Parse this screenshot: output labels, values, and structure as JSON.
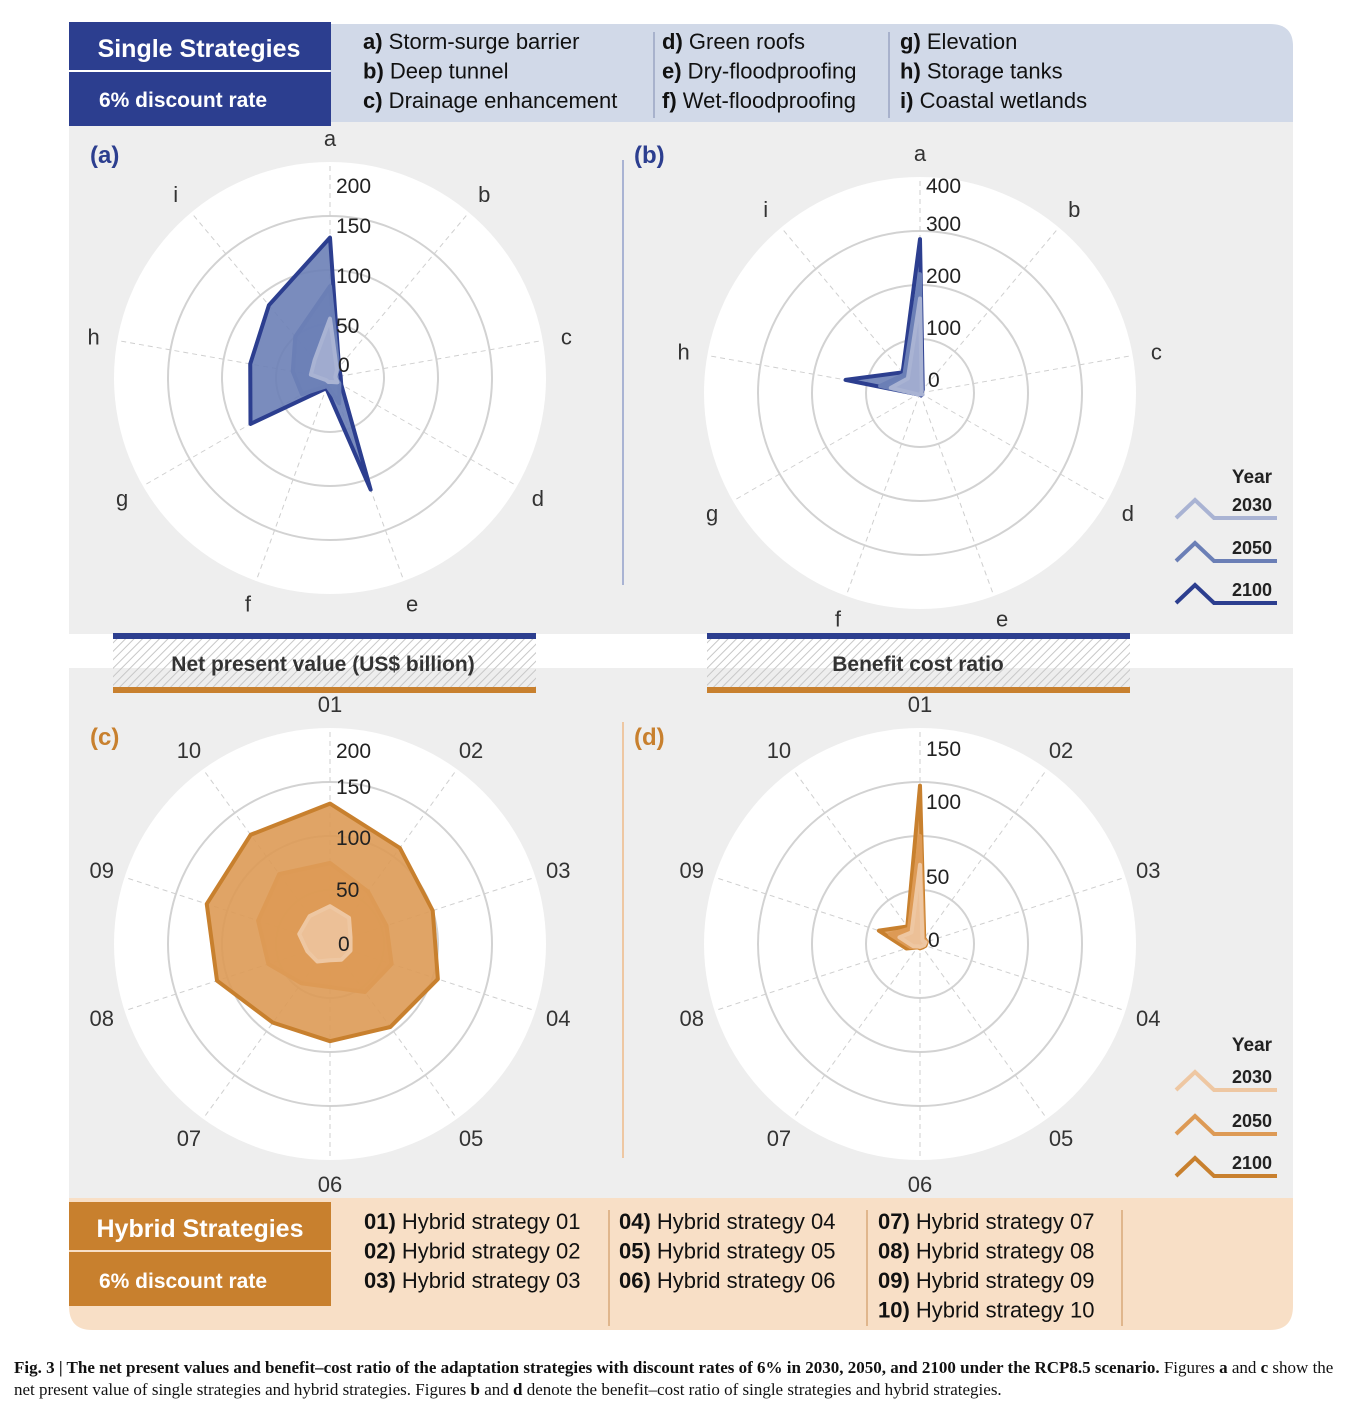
{
  "colors": {
    "blue": "#2c3e8f",
    "blue_light": "#a9b3d3",
    "blue_mid": "#6b7fb6",
    "blue_header_bg": "#d1d9e8",
    "orange": "#c8802e",
    "orange_light": "#eec7a2",
    "orange_mid": "#dd9a55",
    "orange_header_bg": "#f8dfc6",
    "panel_bg": "#eeeeee"
  },
  "single_header": {
    "title": "Single Strategies",
    "rate": "6% discount rate",
    "legend_cols": [
      [
        {
          "key": "a)",
          "text": "Storm-surge barrier"
        },
        {
          "key": "b)",
          "text": "Deep tunnel"
        },
        {
          "key": "c)",
          "text": "Drainage enhancement"
        }
      ],
      [
        {
          "key": "d)",
          "text": "Green roofs"
        },
        {
          "key": "e)",
          "text": "Dry-floodproofing"
        },
        {
          "key": "f)",
          "text": "Wet-floodproofing"
        }
      ],
      [
        {
          "key": "g)",
          "text": "Elevation"
        },
        {
          "key": "h)",
          "text": "Storage tanks"
        },
        {
          "key": "i)",
          "text": "Coastal wetlands"
        }
      ]
    ]
  },
  "hybrid_header": {
    "title": "Hybrid Strategies",
    "rate": "6% discount rate",
    "legend_cols": [
      [
        {
          "key": "01)",
          "text": "Hybrid strategy 01"
        },
        {
          "key": "02)",
          "text": "Hybrid strategy 02"
        },
        {
          "key": "03)",
          "text": "Hybrid strategy 03"
        }
      ],
      [
        {
          "key": "04)",
          "text": "Hybrid strategy 04"
        },
        {
          "key": "05)",
          "text": "Hybrid strategy 05"
        },
        {
          "key": "06)",
          "text": "Hybrid strategy 06"
        }
      ],
      [
        {
          "key": "07)",
          "text": "Hybrid strategy 07"
        },
        {
          "key": "08)",
          "text": "Hybrid strategy 08"
        },
        {
          "key": "09)",
          "text": "Hybrid strategy 09"
        },
        {
          "key": "10)",
          "text": "Hybrid strategy 10"
        }
      ]
    ]
  },
  "metric_labels": {
    "npv": "Net present value (US$ billion)",
    "bcr": "Benefit cost ratio"
  },
  "year_legend": {
    "title": "Year",
    "years": [
      "2030",
      "2050",
      "2100"
    ]
  },
  "chart_data": [
    {
      "id": "a",
      "panel_label": "(a)",
      "type": "radar",
      "theme": "blue",
      "axes": [
        "a",
        "b",
        "c",
        "d",
        "e",
        "f",
        "g",
        "h",
        "i"
      ],
      "ticks": [
        0,
        50,
        100,
        150,
        200
      ],
      "r_range": [
        0,
        200
      ],
      "series": [
        {
          "name": "2030",
          "values": [
            55,
            10,
            5,
            8,
            4,
            4,
            4,
            18,
            22
          ]
        },
        {
          "name": "2050",
          "values": [
            85,
            12,
            5,
            10,
            25,
            8,
            30,
            35,
            50
          ]
        },
        {
          "name": "2100",
          "values": [
            130,
            13,
            10,
            12,
            110,
            10,
            85,
            75,
            88
          ]
        }
      ]
    },
    {
      "id": "b",
      "panel_label": "(b)",
      "type": "radar",
      "theme": "blue",
      "axes": [
        "a",
        "b",
        "c",
        "d",
        "e",
        "f",
        "g",
        "h",
        "i"
      ],
      "ticks": [
        0,
        100,
        200,
        300,
        400
      ],
      "r_range": [
        0,
        400
      ],
      "series": [
        {
          "name": "2030",
          "values": [
            175,
            5,
            2,
            5,
            3,
            3,
            5,
            55,
            35
          ]
        },
        {
          "name": "2050",
          "values": [
            220,
            5,
            3,
            5,
            3,
            3,
            5,
            75,
            45
          ]
        },
        {
          "name": "2100",
          "values": [
            285,
            8,
            3,
            5,
            5,
            3,
            5,
            140,
            50
          ]
        }
      ]
    },
    {
      "id": "c",
      "panel_label": "(c)",
      "type": "radar",
      "theme": "orange",
      "axes": [
        "01",
        "02",
        "03",
        "04",
        "05",
        "06",
        "07",
        "08",
        "09",
        "10"
      ],
      "ticks": [
        0,
        50,
        100,
        150,
        200
      ],
      "r_range": [
        0,
        200
      ],
      "series": [
        {
          "name": "2030",
          "values": [
            35,
            30,
            20,
            20,
            18,
            15,
            20,
            22,
            30,
            32
          ]
        },
        {
          "name": "2050",
          "values": [
            75,
            60,
            55,
            60,
            55,
            40,
            45,
            60,
            70,
            80
          ]
        },
        {
          "name": "2100",
          "values": [
            130,
            110,
            100,
            105,
            95,
            90,
            90,
            110,
            120,
            125
          ]
        }
      ]
    },
    {
      "id": "d",
      "panel_label": "(d)",
      "type": "radar",
      "theme": "orange",
      "axes": [
        "01",
        "02",
        "03",
        "04",
        "05",
        "06",
        "07",
        "08",
        "09",
        "10"
      ],
      "ticks": [
        0,
        50,
        100,
        150
      ],
      "r_range": [
        0,
        150
      ],
      "series": [
        {
          "name": "2030",
          "values": [
            55,
            3,
            4,
            3,
            2,
            2,
            2,
            5,
            15,
            10
          ]
        },
        {
          "name": "2050",
          "values": [
            75,
            4,
            5,
            3,
            2,
            2,
            3,
            7,
            22,
            13
          ]
        },
        {
          "name": "2100",
          "values": [
            110,
            5,
            5,
            4,
            3,
            3,
            3,
            10,
            30,
            15
          ]
        }
      ]
    }
  ],
  "caption": {
    "bold": "Fig. 3 | The net present values and benefit–cost ratio of the adaptation strategies with discount rates of 6% in 2030, 2050, and 2100 under the RCP8.5 scenario.",
    "t1": " Figures ",
    "b1": "a",
    "t2": " and ",
    "b2": "c",
    "t3": " show the net present value of single strategies and hybrid strategies. Figures ",
    "b3": "b",
    "t4": " and ",
    "b4": "d",
    "t5": " denote the benefit–cost ratio of single strategies and hybrid strategies."
  }
}
